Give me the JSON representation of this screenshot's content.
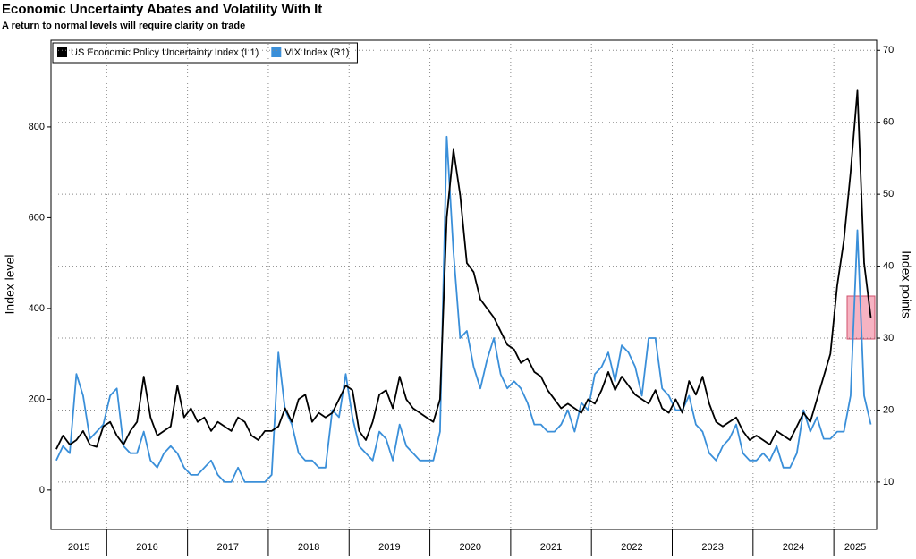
{
  "chart_data": {
    "type": "line",
    "title": "Economic Uncertainty Abates and Volatility With It",
    "subtitle": "A return to normal levels will require clarity on trade",
    "ylabel": "Index level",
    "y2label": "Index points",
    "xlim": [
      2015.31,
      2025.53
    ],
    "years": [
      2015,
      2016,
      2017,
      2018,
      2019,
      2020,
      2021,
      2022,
      2023,
      2024,
      2025
    ],
    "ylim": [
      -87,
      991
    ],
    "yticks": [
      0,
      200,
      400,
      600,
      800
    ],
    "y2lim": [
      3.4,
      71.4
    ],
    "y2ticks": [
      10,
      20,
      30,
      40,
      50,
      60,
      70
    ],
    "grid": true,
    "legend": "upper left",
    "x": [
      2015.375,
      2015.458,
      2015.542,
      2015.625,
      2015.708,
      2015.792,
      2015.875,
      2015.958,
      2016.042,
      2016.125,
      2016.208,
      2016.292,
      2016.375,
      2016.458,
      2016.542,
      2016.625,
      2016.708,
      2016.792,
      2016.875,
      2016.958,
      2017.042,
      2017.125,
      2017.208,
      2017.292,
      2017.375,
      2017.458,
      2017.542,
      2017.625,
      2017.708,
      2017.792,
      2017.875,
      2017.958,
      2018.042,
      2018.125,
      2018.208,
      2018.292,
      2018.375,
      2018.458,
      2018.542,
      2018.625,
      2018.708,
      2018.792,
      2018.875,
      2018.958,
      2019.042,
      2019.125,
      2019.208,
      2019.292,
      2019.375,
      2019.458,
      2019.542,
      2019.625,
      2019.708,
      2019.792,
      2019.875,
      2019.958,
      2020.042,
      2020.125,
      2020.208,
      2020.292,
      2020.375,
      2020.458,
      2020.542,
      2020.625,
      2020.708,
      2020.792,
      2020.875,
      2020.958,
      2021.042,
      2021.125,
      2021.208,
      2021.292,
      2021.375,
      2021.458,
      2021.542,
      2021.625,
      2021.708,
      2021.792,
      2021.875,
      2021.958,
      2022.042,
      2022.125,
      2022.208,
      2022.292,
      2022.375,
      2022.458,
      2022.542,
      2022.625,
      2022.708,
      2022.792,
      2022.875,
      2022.958,
      2023.042,
      2023.125,
      2023.208,
      2023.292,
      2023.375,
      2023.458,
      2023.542,
      2023.625,
      2023.708,
      2023.792,
      2023.875,
      2023.958,
      2024.042,
      2024.125,
      2024.208,
      2024.292,
      2024.375,
      2024.458,
      2024.542,
      2024.625,
      2024.708,
      2024.792,
      2024.875,
      2024.958,
      2025.042,
      2025.125,
      2025.208,
      2025.292,
      2025.375,
      2025.458
    ],
    "series": [
      {
        "name": "VIX Index (R1)",
        "color": "#3a8fd9",
        "axis": "y2",
        "values": [
          13,
          15,
          14,
          25,
          22,
          16,
          17,
          18,
          22,
          23,
          15,
          14,
          14,
          17,
          13,
          12,
          14,
          15,
          14,
          12,
          11,
          11,
          12,
          13,
          11,
          10,
          10,
          12,
          10,
          10,
          10,
          10,
          11,
          28,
          20,
          18,
          14,
          13,
          13,
          12,
          12,
          20,
          19,
          25,
          19,
          15,
          14,
          13,
          17,
          16,
          13,
          18,
          15,
          14,
          13,
          13,
          13,
          17,
          58,
          42,
          30,
          31,
          26,
          23,
          27,
          30,
          25,
          23,
          24,
          23,
          21,
          18,
          18,
          17,
          17,
          18,
          20,
          17,
          21,
          20,
          25,
          26,
          28,
          24,
          29,
          28,
          26,
          22,
          30,
          30,
          23,
          22,
          20,
          20,
          22,
          18,
          17,
          14,
          13,
          15,
          16,
          18,
          14,
          13,
          13,
          14,
          13,
          15,
          12,
          12,
          14,
          20,
          17,
          19,
          16,
          16,
          17,
          17,
          22,
          45,
          22,
          18
        ]
      },
      {
        "name": "US Economic Policy Uncertainty Index (L1)",
        "color": "#000000",
        "values": [
          90,
          120,
          100,
          110,
          130,
          100,
          95,
          140,
          150,
          120,
          100,
          130,
          150,
          250,
          160,
          120,
          130,
          140,
          230,
          160,
          180,
          150,
          160,
          130,
          150,
          140,
          130,
          160,
          150,
          120,
          110,
          130,
          130,
          140,
          180,
          150,
          200,
          210,
          150,
          170,
          160,
          170,
          200,
          230,
          220,
          130,
          110,
          150,
          210,
          220,
          180,
          250,
          200,
          180,
          170,
          160,
          150,
          200,
          600,
          750,
          650,
          500,
          480,
          420,
          400,
          380,
          350,
          320,
          310,
          280,
          290,
          260,
          250,
          220,
          200,
          180,
          190,
          180,
          170,
          200,
          190,
          220,
          260,
          220,
          250,
          230,
          210,
          200,
          190,
          220,
          180,
          170,
          200,
          170,
          240,
          210,
          250,
          190,
          150,
          140,
          150,
          160,
          130,
          110,
          120,
          110,
          100,
          130,
          120,
          110,
          140,
          170,
          150,
          200,
          250,
          300,
          450,
          550,
          700,
          880,
          500,
          380
        ]
      }
    ]
  }
}
